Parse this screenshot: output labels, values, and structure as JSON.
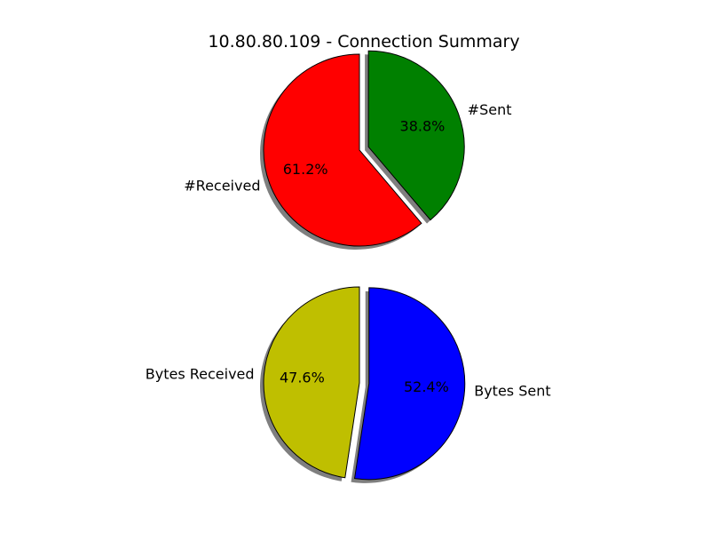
{
  "chart_data": [
    {
      "type": "pie",
      "title": "10.80.80.109 - Connection Summary",
      "labels": [
        "#Received",
        "#Sent"
      ],
      "values": [
        61.2,
        38.8
      ],
      "percent_labels": [
        "61.2%",
        "38.8%"
      ],
      "colors": [
        "#ff0000",
        "#008000"
      ],
      "explode": [
        0,
        0.1
      ],
      "shadow": true
    },
    {
      "type": "pie",
      "title": "",
      "labels": [
        "Bytes Received",
        "Bytes Sent"
      ],
      "values": [
        47.6,
        52.4
      ],
      "percent_labels": [
        "47.6%",
        "52.4%"
      ],
      "colors": [
        "#bfbf00",
        "#0000ff"
      ],
      "explode": [
        0,
        0.1
      ],
      "shadow": true
    }
  ]
}
